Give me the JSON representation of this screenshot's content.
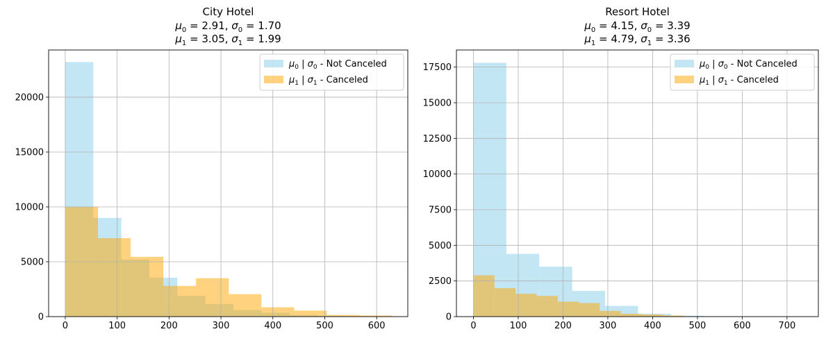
{
  "chart_data": [
    {
      "type": "histogram",
      "title": "City Hotel",
      "subtitle_lines": [
        {
          "sym": "μ",
          "sub": "0",
          "value": "2.91",
          "sym2": "σ",
          "sub2": "0",
          "value2": "1.70"
        },
        {
          "sym": "μ",
          "sub": "1",
          "value": "3.05",
          "sym2": "σ",
          "sub2": "1",
          "value2": "1.99"
        }
      ],
      "xlim": [
        -32,
        660
      ],
      "ylim": [
        0,
        24300
      ],
      "xticks": [
        0,
        100,
        200,
        300,
        400,
        500,
        600
      ],
      "yticks": [
        0,
        5000,
        10000,
        15000,
        20000
      ],
      "grid": true,
      "legend_position": "top-right",
      "series": [
        {
          "name": {
            "sym": "μ",
            "sub": "0",
            "sym2": "σ",
            "sub2": "0",
            "text": " - Not Canceled"
          },
          "color": "#87ceeb",
          "opacity": 0.5,
          "bins": [
            {
              "x0": 0,
              "x1": 54,
              "y": 23200
            },
            {
              "x0": 54,
              "x1": 108,
              "y": 9000
            },
            {
              "x0": 108,
              "x1": 162,
              "y": 5200
            },
            {
              "x0": 162,
              "x1": 216,
              "y": 3550
            },
            {
              "x0": 216,
              "x1": 270,
              "y": 1900
            },
            {
              "x0": 270,
              "x1": 324,
              "y": 1150
            },
            {
              "x0": 324,
              "x1": 378,
              "y": 600
            },
            {
              "x0": 378,
              "x1": 432,
              "y": 350
            },
            {
              "x0": 432,
              "x1": 486,
              "y": 150
            },
            {
              "x0": 486,
              "x1": 540,
              "y": 60
            }
          ]
        },
        {
          "name": {
            "sym": "μ",
            "sub": "1",
            "sym2": "σ",
            "sub2": "1",
            "text": " - Canceled"
          },
          "color": "#ffa500",
          "opacity": 0.5,
          "bins": [
            {
              "x0": 0,
              "x1": 63,
              "y": 10000
            },
            {
              "x0": 63,
              "x1": 126,
              "y": 7150
            },
            {
              "x0": 126,
              "x1": 189,
              "y": 5450
            },
            {
              "x0": 189,
              "x1": 252,
              "y": 2800
            },
            {
              "x0": 252,
              "x1": 315,
              "y": 3500
            },
            {
              "x0": 315,
              "x1": 378,
              "y": 2050
            },
            {
              "x0": 378,
              "x1": 441,
              "y": 850
            },
            {
              "x0": 441,
              "x1": 504,
              "y": 550
            },
            {
              "x0": 504,
              "x1": 567,
              "y": 150
            },
            {
              "x0": 567,
              "x1": 630,
              "y": 100
            }
          ]
        }
      ]
    },
    {
      "type": "histogram",
      "title": "Resort Hotel",
      "subtitle_lines": [
        {
          "sym": "μ",
          "sub": "0",
          "value": "4.15",
          "sym2": "σ",
          "sub2": "0",
          "value2": "3.39"
        },
        {
          "sym": "μ",
          "sub": "1",
          "value": "4.79",
          "sym2": "σ",
          "sub2": "1",
          "value2": "3.36"
        }
      ],
      "xlim": [
        -38,
        770
      ],
      "ylim": [
        0,
        18700
      ],
      "xticks": [
        0,
        100,
        200,
        300,
        400,
        500,
        600,
        700
      ],
      "yticks": [
        0,
        2500,
        5000,
        7500,
        10000,
        12500,
        15000,
        17500
      ],
      "grid": true,
      "legend_position": "top-right",
      "series": [
        {
          "name": {
            "sym": "μ",
            "sub": "0",
            "sym2": "σ",
            "sub2": "0",
            "text": " - Not Canceled"
          },
          "color": "#87ceeb",
          "opacity": 0.5,
          "bins": [
            {
              "x0": 0,
              "x1": 73.5,
              "y": 17800
            },
            {
              "x0": 73.5,
              "x1": 147,
              "y": 4400
            },
            {
              "x0": 147,
              "x1": 220.5,
              "y": 3500
            },
            {
              "x0": 220.5,
              "x1": 294,
              "y": 1800
            },
            {
              "x0": 294,
              "x1": 367.5,
              "y": 750
            },
            {
              "x0": 367.5,
              "x1": 441,
              "y": 200
            },
            {
              "x0": 441,
              "x1": 514.5,
              "y": 60
            },
            {
              "x0": 514.5,
              "x1": 588,
              "y": 30
            },
            {
              "x0": 588,
              "x1": 661.5,
              "y": 15
            },
            {
              "x0": 661.5,
              "x1": 735,
              "y": 10
            }
          ]
        },
        {
          "name": {
            "sym": "μ",
            "sub": "1",
            "sym2": "σ",
            "sub2": "1",
            "text": " - Canceled"
          },
          "color": "#ffa500",
          "opacity": 0.5,
          "bins": [
            {
              "x0": 0,
              "x1": 47,
              "y": 2900
            },
            {
              "x0": 47,
              "x1": 94,
              "y": 2000
            },
            {
              "x0": 94,
              "x1": 141,
              "y": 1600
            },
            {
              "x0": 141,
              "x1": 188,
              "y": 1450
            },
            {
              "x0": 188,
              "x1": 235,
              "y": 1050
            },
            {
              "x0": 235,
              "x1": 282,
              "y": 950
            },
            {
              "x0": 282,
              "x1": 329,
              "y": 400
            },
            {
              "x0": 329,
              "x1": 376,
              "y": 200
            },
            {
              "x0": 376,
              "x1": 423,
              "y": 150
            },
            {
              "x0": 423,
              "x1": 470,
              "y": 80
            }
          ]
        }
      ]
    }
  ]
}
